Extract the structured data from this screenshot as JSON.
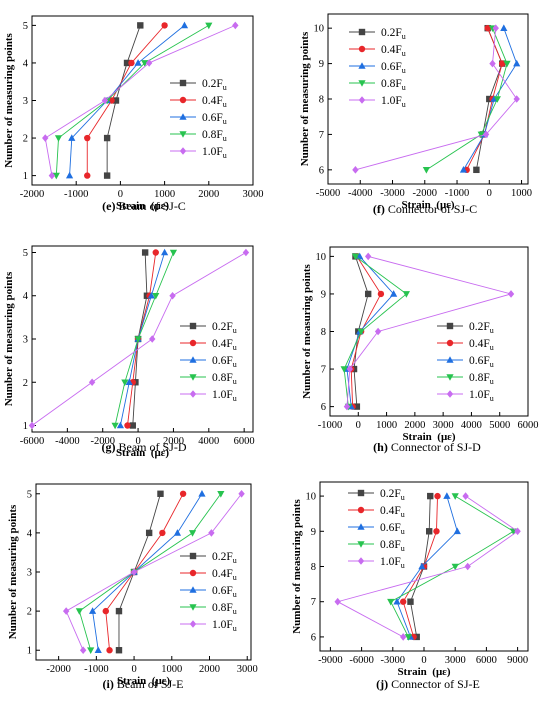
{
  "colors": {
    "0.2Fu": "#444444",
    "0.4Fu": "#e8262a",
    "0.6Fu": "#1f6fe0",
    "0.8Fu": "#27c34f",
    "1.0Fu": "#c86cf0"
  },
  "legend_labels": [
    "0.2F",
    "0.4F",
    "0.6F",
    "0.8F",
    "1.0F"
  ],
  "legend_subscript": "u",
  "chart_data": [
    {
      "type": "line",
      "letter": "(e)",
      "caption": "Beam of SJ-C",
      "xlabel": "Strain  (με)",
      "ylabel": "Number of measuring points",
      "xlim": [
        -2000,
        3000
      ],
      "xticks": [
        -2000,
        -1000,
        0,
        1000,
        2000,
        3000
      ],
      "ylim": [
        0.75,
        5.25
      ],
      "yticks": [
        1,
        2,
        3,
        4,
        5
      ],
      "y": [
        1,
        2,
        3,
        4,
        5
      ],
      "series": [
        {
          "name": "0.2Fu",
          "values": [
            -300,
            -300,
            -100,
            150,
            450
          ]
        },
        {
          "name": "0.4Fu",
          "values": [
            -750,
            -750,
            -200,
            250,
            1000
          ]
        },
        {
          "name": "0.6Fu",
          "values": [
            -1150,
            -1100,
            -300,
            400,
            1450
          ]
        },
        {
          "name": "0.8Fu",
          "values": [
            -1450,
            -1400,
            -300,
            550,
            2000
          ]
        },
        {
          "name": "1.0Fu",
          "values": [
            -1550,
            -1700,
            -350,
            650,
            2600
          ]
        }
      ]
    },
    {
      "type": "line",
      "letter": "(f)",
      "caption": "Connector of SJ-C",
      "xlabel": "Strain  (με)",
      "ylabel": "Number of measuring points",
      "xlim": [
        -5000,
        1200
      ],
      "xticks": [
        -5000,
        -4000,
        -3000,
        -2000,
        -1000,
        0,
        1000
      ],
      "ylim": [
        5.6,
        10.4
      ],
      "yticks": [
        6,
        7,
        8,
        9,
        10
      ],
      "y": [
        6,
        7,
        8,
        9,
        10
      ],
      "series": [
        {
          "name": "0.2Fu",
          "values": [
            -400,
            -200,
            0,
            400,
            -50
          ]
        },
        {
          "name": "0.4Fu",
          "values": [
            -700,
            -150,
            100,
            400,
            -50
          ]
        },
        {
          "name": "0.6Fu",
          "values": [
            -800,
            -150,
            150,
            850,
            450
          ]
        },
        {
          "name": "0.8Fu",
          "values": [
            -1950,
            -250,
            250,
            550,
            100
          ]
        },
        {
          "name": "1.0Fu",
          "values": [
            -4150,
            -100,
            850,
            100,
            200
          ]
        }
      ]
    },
    {
      "type": "line",
      "letter": "(g)",
      "caption": "Beam of SJ-D",
      "xlabel": "Strain  (με)",
      "ylabel": "Number of measuring points",
      "xlim": [
        -6000,
        6500
      ],
      "xticks": [
        -6000,
        -4000,
        -2000,
        0,
        2000,
        4000,
        6000
      ],
      "ylim": [
        0.85,
        5.15
      ],
      "yticks": [
        1,
        2,
        3,
        4,
        5
      ],
      "y": [
        1,
        2,
        3,
        4,
        5
      ],
      "series": [
        {
          "name": "0.2Fu",
          "values": [
            -300,
            -150,
            0,
            500,
            400
          ]
        },
        {
          "name": "0.4Fu",
          "values": [
            -600,
            -300,
            0,
            650,
            1000
          ]
        },
        {
          "name": "0.6Fu",
          "values": [
            -1000,
            -500,
            0,
            750,
            1500
          ]
        },
        {
          "name": "0.8Fu",
          "values": [
            -1300,
            -750,
            0,
            1000,
            2000
          ]
        },
        {
          "name": "1.0Fu",
          "values": [
            -6000,
            -2600,
            800,
            1950,
            6100
          ]
        }
      ]
    },
    {
      "type": "line",
      "letter": "(h)",
      "caption": "Connector of SJ-D",
      "xlabel": "Strain  (με)",
      "ylabel": "Number of measuring points",
      "xlim": [
        -1000,
        6000
      ],
      "xticks": [
        -1000,
        0,
        1000,
        2000,
        3000,
        4000,
        5000,
        6000
      ],
      "ylim": [
        5.75,
        10.25
      ],
      "yticks": [
        6,
        7,
        8,
        9,
        10
      ],
      "y": [
        6,
        7,
        8,
        9,
        10
      ],
      "series": [
        {
          "name": "0.2Fu",
          "values": [
            -50,
            -150,
            0,
            350,
            -100
          ]
        },
        {
          "name": "0.4Fu",
          "values": [
            -200,
            -250,
            100,
            800,
            -50
          ]
        },
        {
          "name": "0.6Fu",
          "values": [
            -250,
            -400,
            50,
            1250,
            50
          ]
        },
        {
          "name": "0.8Fu",
          "values": [
            -350,
            -500,
            100,
            1700,
            -100
          ]
        },
        {
          "name": "1.0Fu",
          "values": [
            -400,
            -300,
            700,
            5400,
            350
          ]
        }
      ]
    },
    {
      "type": "line",
      "letter": "(i)",
      "caption": "Beam of SJ-E",
      "xlabel": "Strain  (με)",
      "ylabel": "Number of measuring points",
      "xlim": [
        -2600,
        3100
      ],
      "xticks": [
        -2000,
        -1000,
        0,
        1000,
        2000,
        3000
      ],
      "ylim": [
        0.75,
        5.25
      ],
      "yticks": [
        1,
        2,
        3,
        4,
        5
      ],
      "y": [
        1,
        2,
        3,
        4,
        5
      ],
      "series": [
        {
          "name": "0.2Fu",
          "values": [
            -400,
            -400,
            0,
            400,
            700
          ]
        },
        {
          "name": "0.4Fu",
          "values": [
            -650,
            -750,
            0,
            750,
            1300
          ]
        },
        {
          "name": "0.6Fu",
          "values": [
            -950,
            -1100,
            0,
            1150,
            1800
          ]
        },
        {
          "name": "0.8Fu",
          "values": [
            -1150,
            -1450,
            0,
            1550,
            2300
          ]
        },
        {
          "name": "1.0Fu",
          "values": [
            -1350,
            -1800,
            0,
            2050,
            2850
          ]
        }
      ]
    },
    {
      "type": "line",
      "letter": "(j)",
      "caption": "Connector of SJ-E",
      "xlabel": "Strain  (με)",
      "ylabel": "Number of measuring points",
      "xlim": [
        -10000,
        10000
      ],
      "xticks": [
        -9000,
        -6000,
        -3000,
        0,
        3000,
        6000,
        9000
      ],
      "ylim": [
        5.6,
        10.4
      ],
      "yticks": [
        6,
        7,
        8,
        9,
        10
      ],
      "y": [
        6,
        7,
        8,
        9,
        10
      ],
      "series": [
        {
          "name": "0.2Fu",
          "values": [
            -700,
            -1300,
            0,
            500,
            600
          ]
        },
        {
          "name": "0.4Fu",
          "values": [
            -1000,
            -2000,
            0,
            1200,
            1300
          ]
        },
        {
          "name": "0.6Fu",
          "values": [
            -1300,
            -2600,
            -200,
            3200,
            2200
          ]
        },
        {
          "name": "0.8Fu",
          "values": [
            -1500,
            -3200,
            3000,
            8600,
            3000
          ]
        },
        {
          "name": "1.0Fu",
          "values": [
            -2000,
            -8300,
            4200,
            9000,
            4000
          ]
        }
      ]
    }
  ]
}
